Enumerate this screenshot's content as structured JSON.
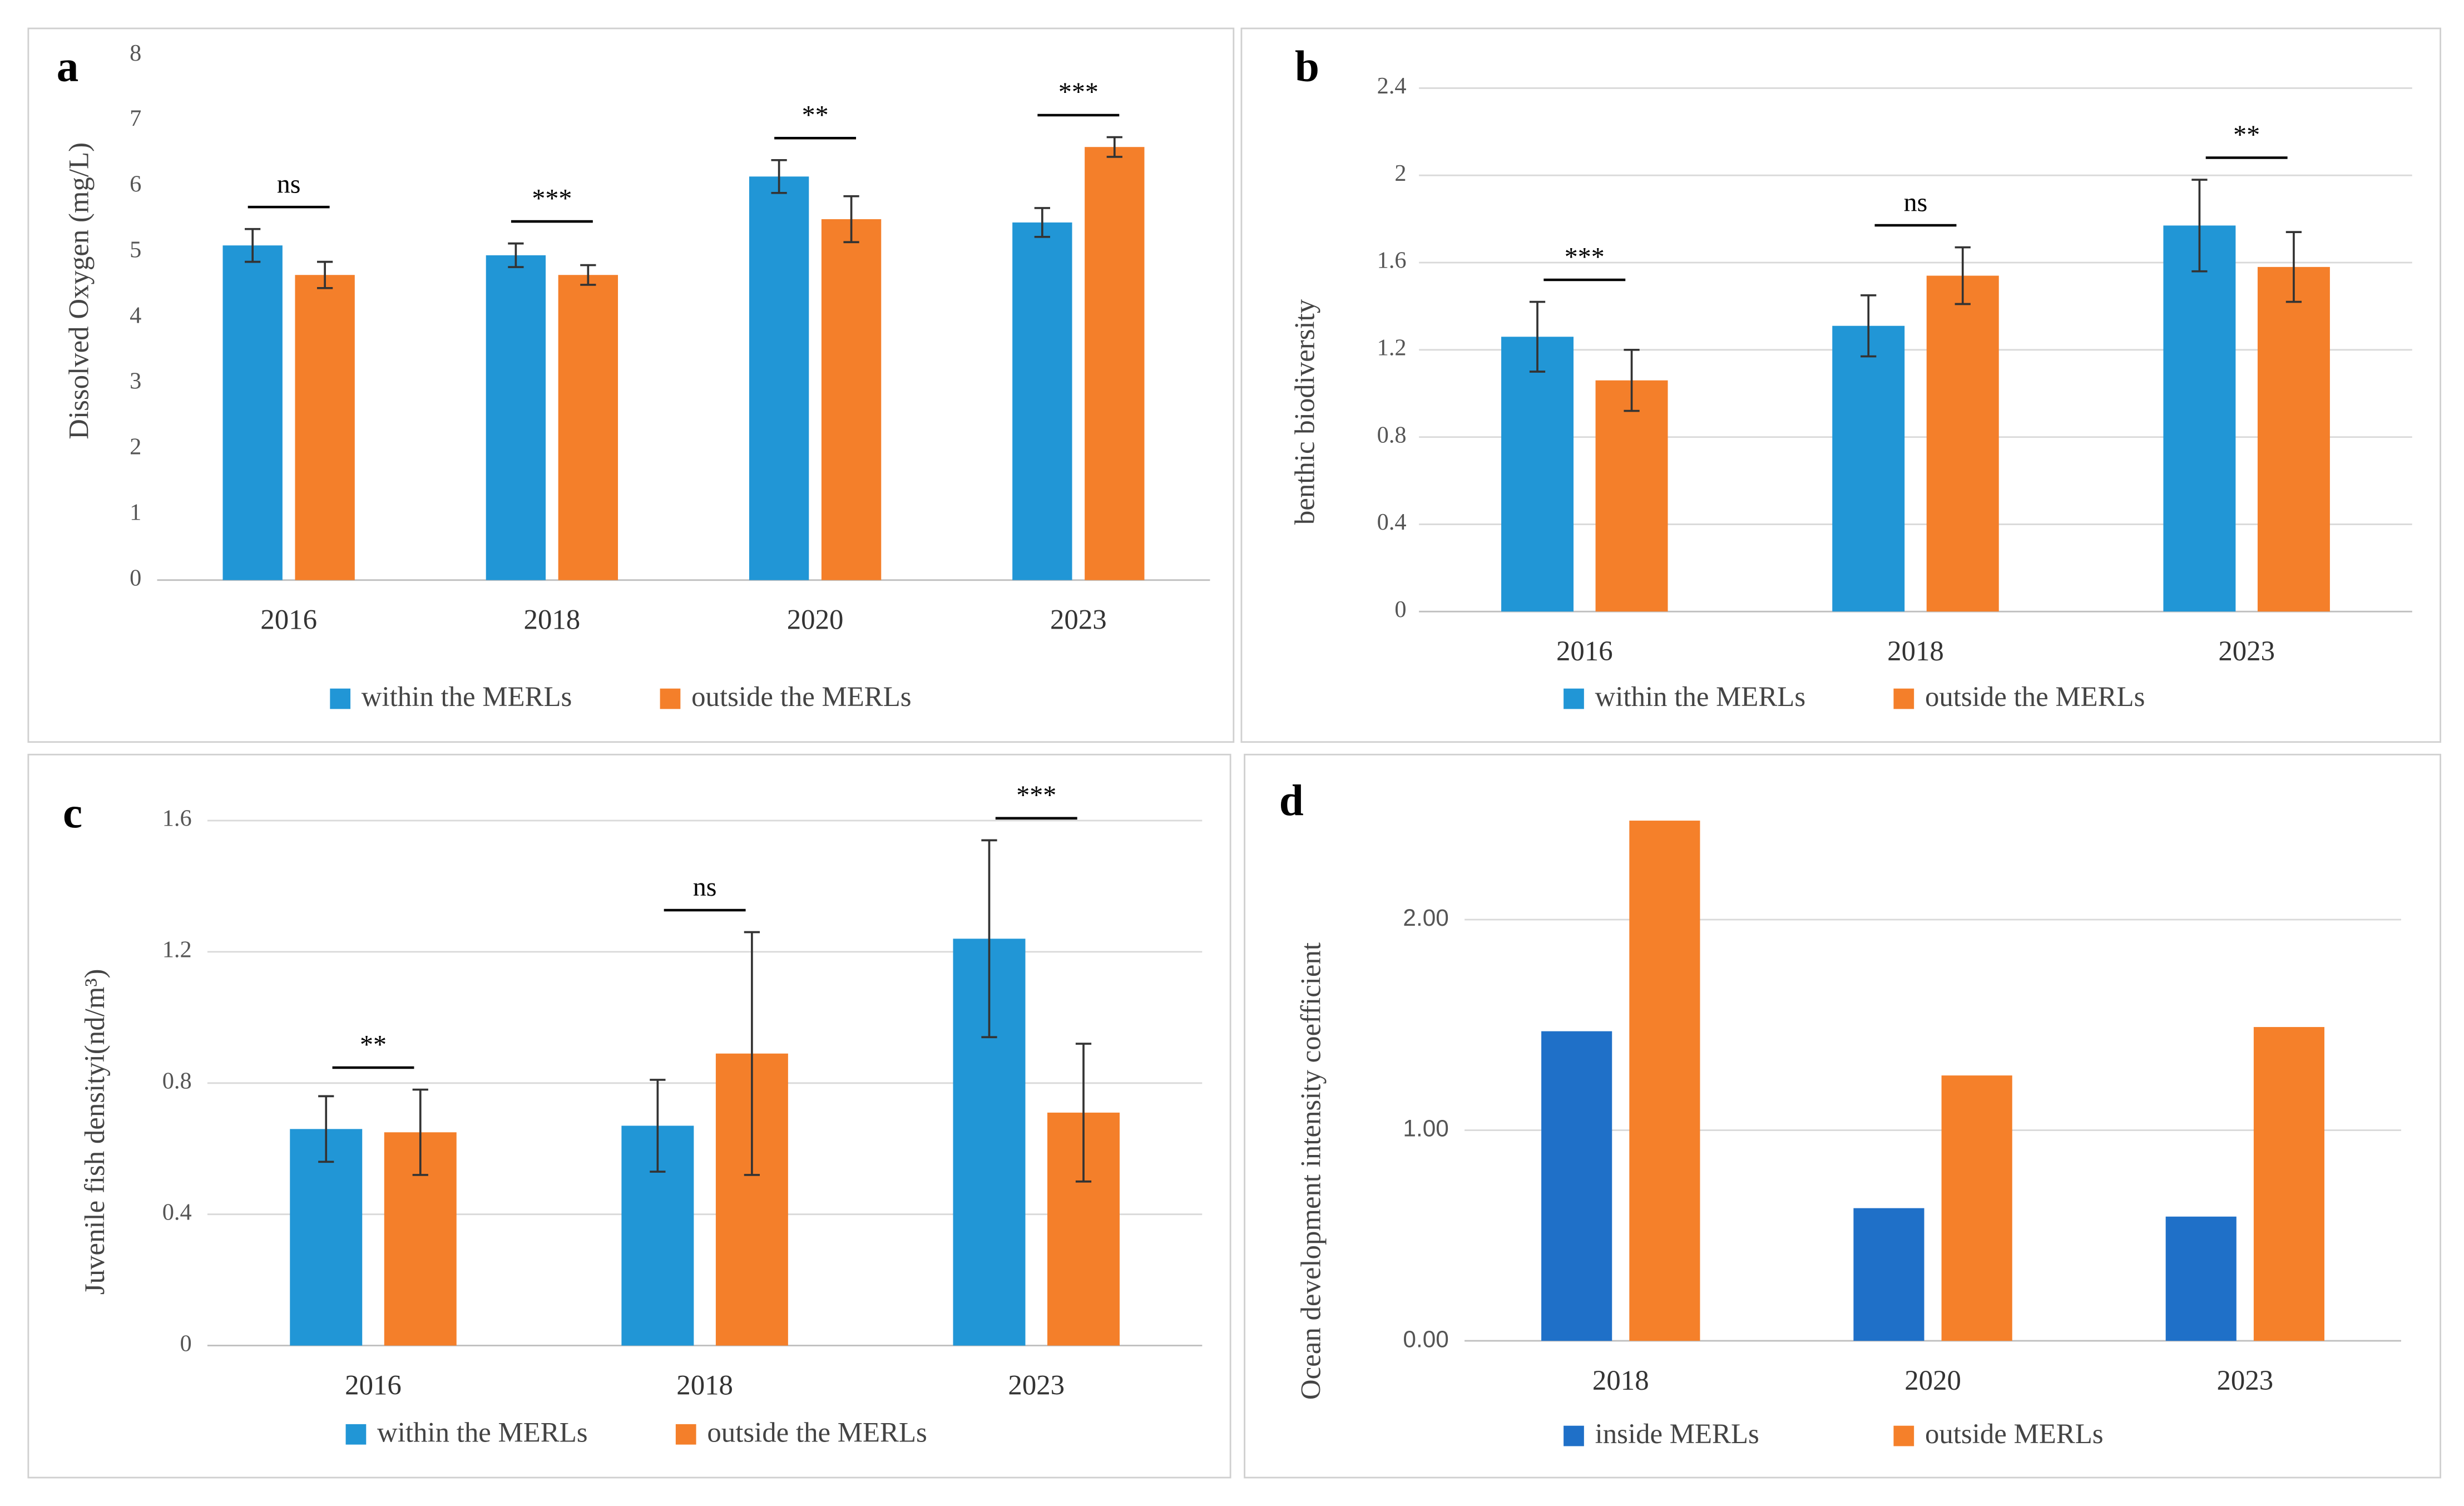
{
  "chart_data": [
    {
      "type": "bar",
      "panel_label": "a",
      "y_label": "Dissolved Oxygen (mg/L)",
      "categories": [
        "2016",
        "2018",
        "2020",
        "2023"
      ],
      "series": [
        {
          "name": "within the MERLs",
          "color": "#2196d6",
          "values": [
            5.1,
            4.95,
            6.15,
            5.45
          ],
          "errors": [
            0.25,
            0.18,
            0.25,
            0.22
          ]
        },
        {
          "name": "outside the MERLs",
          "color": "#f47f2a",
          "values": [
            4.65,
            4.65,
            5.5,
            6.6
          ],
          "errors": [
            0.2,
            0.15,
            0.35,
            0.15
          ]
        }
      ],
      "significance": [
        "ns",
        "***",
        "**",
        "***"
      ],
      "ylim": [
        0,
        8
      ],
      "yticks": [
        0,
        1,
        2,
        3,
        4,
        5,
        6,
        7,
        8
      ],
      "grid": false
    },
    {
      "type": "bar",
      "panel_label": "b",
      "y_label": "benthic biodiversity",
      "categories": [
        "2016",
        "2018",
        "2023"
      ],
      "series": [
        {
          "name": "within the MERLs",
          "color": "#2196d6",
          "values": [
            1.26,
            1.31,
            1.77
          ],
          "errors": [
            0.16,
            0.14,
            0.21
          ]
        },
        {
          "name": "outside the MERLs",
          "color": "#f47f2a",
          "values": [
            1.06,
            1.54,
            1.58
          ],
          "errors": [
            0.14,
            0.13,
            0.16
          ]
        }
      ],
      "significance": [
        "***",
        "ns",
        "**"
      ],
      "ylim": [
        0,
        2.4
      ],
      "yticks": [
        0,
        0.4,
        0.8,
        1.2,
        1.6,
        2,
        2.4
      ],
      "grid": true
    },
    {
      "type": "bar",
      "panel_label": "c",
      "y_label": "Juvenile fish densityi(nd/m³)",
      "categories": [
        "2016",
        "2018",
        "2023"
      ],
      "series": [
        {
          "name": "within the MERLs",
          "color": "#2196d6",
          "values": [
            0.66,
            0.67,
            1.24
          ],
          "errors": [
            0.1,
            0.14,
            0.3
          ]
        },
        {
          "name": "outside the MERLs",
          "color": "#f47f2a",
          "values": [
            0.65,
            0.89,
            0.71
          ],
          "errors": [
            0.13,
            0.37,
            0.21
          ]
        }
      ],
      "significance": [
        "**",
        "ns",
        "***"
      ],
      "ylim": [
        0,
        1.6
      ],
      "yticks": [
        0,
        0.4,
        0.8,
        1.2,
        1.6
      ],
      "grid": true
    },
    {
      "type": "bar",
      "panel_label": "d",
      "y_label": "Ocean development intensity coefficient",
      "categories": [
        "2018",
        "2020",
        "2023"
      ],
      "series": [
        {
          "name": "inside MERLs",
          "color": "#1f70c8",
          "values": [
            1.47,
            0.63,
            0.59
          ]
        },
        {
          "name": "outside MERLs",
          "color": "#f5802a",
          "values": [
            2.47,
            1.26,
            1.49
          ]
        }
      ],
      "ylim": [
        0,
        2.5
      ],
      "yticks": [
        {
          "value": 0,
          "label": "0.00"
        },
        {
          "value": 1,
          "label": "1.00"
        },
        {
          "value": 2,
          "label": "2.00"
        }
      ],
      "grid": true
    }
  ]
}
